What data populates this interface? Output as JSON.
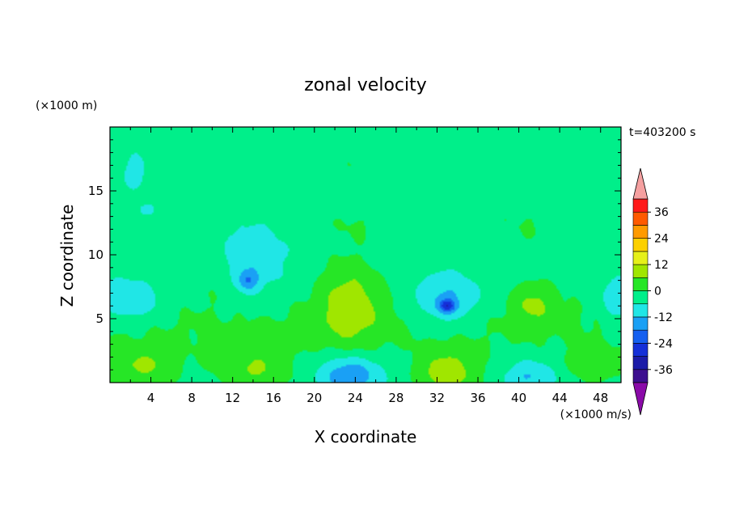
{
  "chart_data": {
    "type": "heatmap",
    "title": "zonal velocity",
    "xlabel": "X coordinate",
    "ylabel": "Z coordinate",
    "x_unit": "(×1000 m/s)",
    "y_unit": "(×1000 m)",
    "time_label": "t=403200 s",
    "xlim": [
      0,
      50
    ],
    "ylim": [
      0,
      20
    ],
    "xticks": [
      4,
      8,
      12,
      16,
      20,
      24,
      28,
      32,
      36,
      40,
      44,
      48
    ],
    "yticks": [
      5,
      10,
      15
    ],
    "colorbar": {
      "labels": [
        36,
        24,
        12,
        0,
        -12,
        -24,
        -36
      ],
      "levels": [
        -42,
        -36,
        -30,
        -24,
        -18,
        -12,
        -6,
        0,
        6,
        12,
        18,
        24,
        30,
        36,
        42
      ],
      "colors": [
        "#3d0f8f",
        "#1c1ca8",
        "#1530d8",
        "#1560f0",
        "#1aa0f5",
        "#20e6e6",
        "#00ef8a",
        "#26e626",
        "#a0e600",
        "#e6f01a",
        "#fcd000",
        "#ff9a00",
        "#ff5a00",
        "#ff1a1a"
      ],
      "under_color": "#8a0aa8",
      "over_color": "#f5a0a0"
    },
    "field_blobs": [
      {
        "x": 6.5,
        "z": 19.2,
        "sx": 0.8,
        "sz": 0.4,
        "v": 2
      },
      {
        "x": 2.5,
        "z": 16.5,
        "sx": 1.5,
        "sz": 1.6,
        "v": -5
      },
      {
        "x": 3.5,
        "z": 13.5,
        "sx": 1.0,
        "sz": 0.6,
        "v": -5
      },
      {
        "x": 2.0,
        "z": 6.5,
        "sx": 3.2,
        "sz": 1.7,
        "v": -11
      },
      {
        "x": 10.5,
        "z": 8.0,
        "sx": 2.0,
        "sz": 2.0,
        "v": 2
      },
      {
        "x": 14.0,
        "z": 9.5,
        "sx": 3.5,
        "sz": 3.0,
        "v": -7
      },
      {
        "x": 13.5,
        "z": 8.0,
        "sx": 1.0,
        "sz": 0.8,
        "v": -12
      },
      {
        "x": 23.5,
        "z": 6.2,
        "sx": 3.0,
        "sz": 3.2,
        "v": 11
      },
      {
        "x": 24.0,
        "z": 12.5,
        "sx": 3.5,
        "sz": 1.8,
        "v": 3
      },
      {
        "x": 23.5,
        "z": 17.0,
        "sx": 1.0,
        "sz": 0.5,
        "v": 3
      },
      {
        "x": 33.0,
        "z": 6.5,
        "sx": 3.2,
        "sz": 2.0,
        "v": -12
      },
      {
        "x": 33.0,
        "z": 6.0,
        "sx": 0.8,
        "sz": 0.5,
        "v": -18
      },
      {
        "x": 41.5,
        "z": 6.2,
        "sx": 2.0,
        "sz": 1.6,
        "v": 8
      },
      {
        "x": 41.0,
        "z": 12.5,
        "sx": 4.5,
        "sz": 2.5,
        "v": 3
      },
      {
        "x": 49.5,
        "z": 6.5,
        "sx": 1.5,
        "sz": 1.7,
        "v": -10
      },
      {
        "x": 3.0,
        "z": 1.2,
        "sx": 3.5,
        "sz": 1.5,
        "v": 9
      },
      {
        "x": 14.0,
        "z": 1.0,
        "sx": 3.5,
        "sz": 1.5,
        "v": 9
      },
      {
        "x": 23.5,
        "z": 0.6,
        "sx": 3.0,
        "sz": 1.5,
        "v": -15
      },
      {
        "x": 33.0,
        "z": 0.7,
        "sx": 3.0,
        "sz": 1.8,
        "v": 12
      },
      {
        "x": 41.0,
        "z": 0.5,
        "sx": 2.5,
        "sz": 1.3,
        "v": -10
      },
      {
        "x": 47.5,
        "z": 1.3,
        "sx": 2.5,
        "sz": 1.3,
        "v": 7
      },
      {
        "x": 15.0,
        "z": 3.5,
        "sx": 5.0,
        "sz": 1.0,
        "v": 2
      },
      {
        "x": 6.0,
        "z": 8.5,
        "sx": 3.0,
        "sz": 1.5,
        "v": 2
      }
    ]
  }
}
